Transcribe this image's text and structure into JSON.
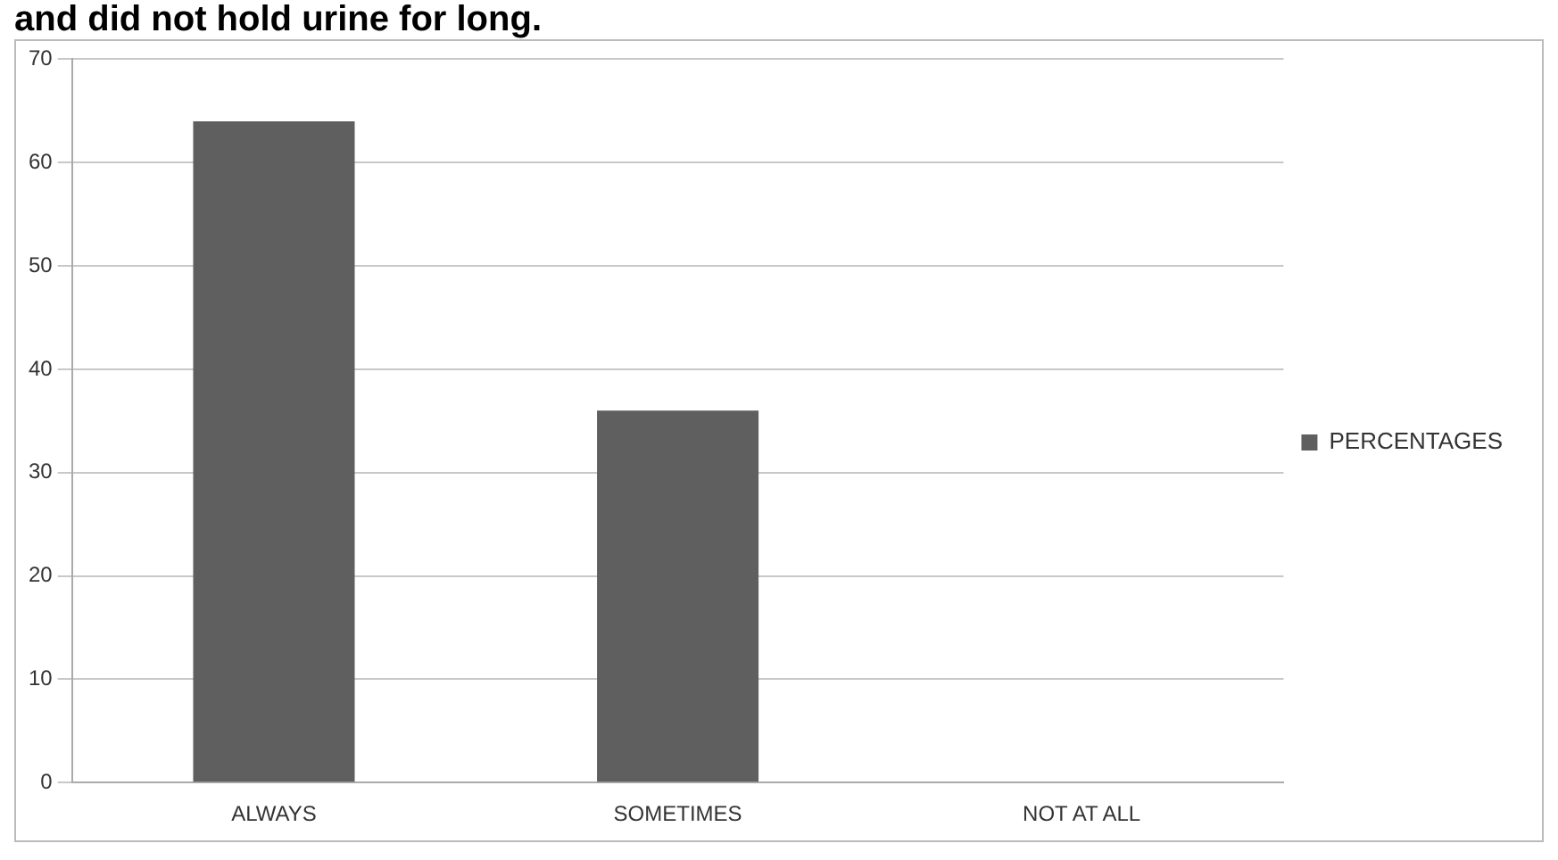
{
  "chart_data": {
    "type": "bar",
    "title": "and did not hold urine for long.",
    "categories": [
      "ALWAYS",
      "SOMETIMES",
      "NOT AT ALL"
    ],
    "series": [
      {
        "name": "PERCENTAGES",
        "color": "#5f5f5f",
        "values": [
          64,
          36,
          0
        ]
      }
    ],
    "ylim": [
      0,
      70
    ],
    "yticks": [
      0,
      10,
      20,
      30,
      40,
      50,
      60,
      70
    ],
    "grid": "y",
    "legend": "right"
  }
}
